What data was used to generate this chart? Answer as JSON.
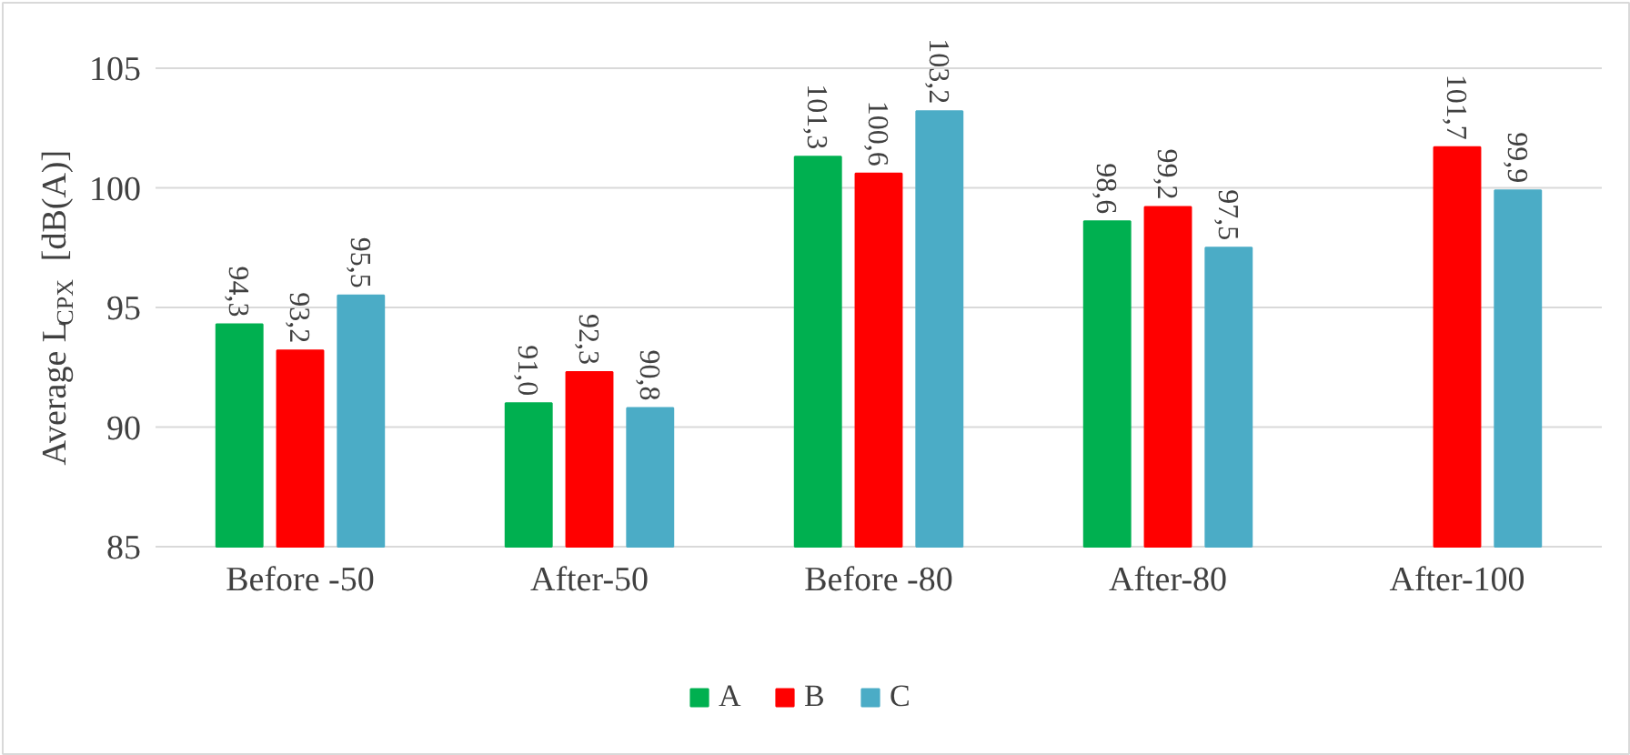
{
  "chart_data": {
    "type": "bar",
    "ylabel": "Average L$_{CPX}$ [dB(A)]",
    "categories": [
      "Before -50",
      "After-50",
      "Before -80",
      "After-80",
      "After-100"
    ],
    "series": [
      {
        "name": "A",
        "color": "#00b050",
        "values": [
          94.3,
          91.0,
          101.3,
          98.6,
          null
        ],
        "value_labels": [
          "94,3",
          "91,0",
          "101,3",
          "98,6",
          null
        ]
      },
      {
        "name": "B",
        "color": "#ff0000",
        "values": [
          93.2,
          92.3,
          100.6,
          99.2,
          101.7
        ],
        "value_labels": [
          "93,2",
          "92,3",
          "100,6",
          "99,2",
          "101,7"
        ]
      },
      {
        "name": "C",
        "color": "#4bacc6",
        "values": [
          95.5,
          90.8,
          103.2,
          97.5,
          99.9
        ],
        "value_labels": [
          "95,5",
          "90,8",
          "103,2",
          "97,5",
          "99,9"
        ]
      }
    ],
    "ylim": [
      85,
      105
    ],
    "yticks": [
      85,
      90,
      95,
      100,
      105
    ],
    "grid": "y",
    "legend": "bottom"
  }
}
